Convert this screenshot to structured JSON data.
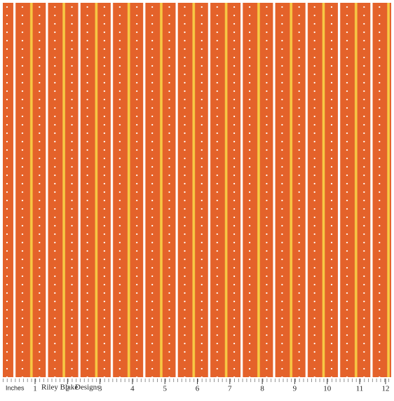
{
  "ruler": {
    "unit_label": "Inches",
    "numbers": [
      "1",
      "2",
      "3",
      "4",
      "5",
      "6",
      "7",
      "8",
      "9",
      "10",
      "11",
      "12"
    ],
    "brand": [
      "Riley Blake",
      "Designs"
    ]
  }
}
